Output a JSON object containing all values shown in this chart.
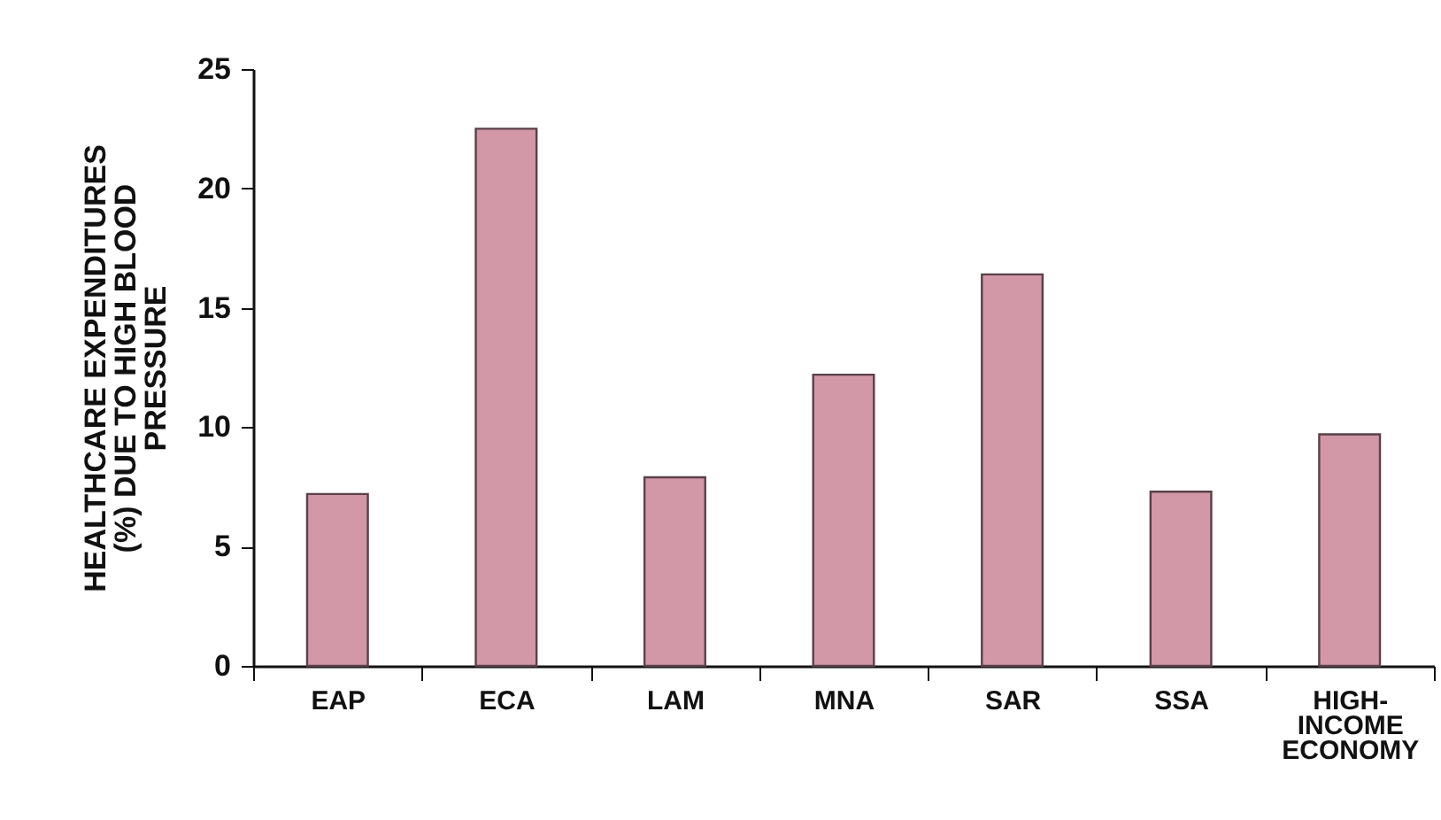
{
  "chart_data": {
    "type": "bar",
    "ylabel": "HEALTHCARE EXPENDITURES\n(%) DUE TO HIGH BLOOD\nPRESSURE",
    "categories": [
      "EAP",
      "ECA",
      "LAM",
      "MNA",
      "SAR",
      "SSA",
      "HIGH-\nINCOME\nECONOMY"
    ],
    "values": [
      7.2,
      22.5,
      7.9,
      12.2,
      16.4,
      7.3,
      9.7
    ],
    "color": "#d298a8",
    "ylim": [
      0,
      25
    ],
    "yticks": [
      0,
      5,
      10,
      15,
      20,
      25
    ],
    "grid": false
  }
}
